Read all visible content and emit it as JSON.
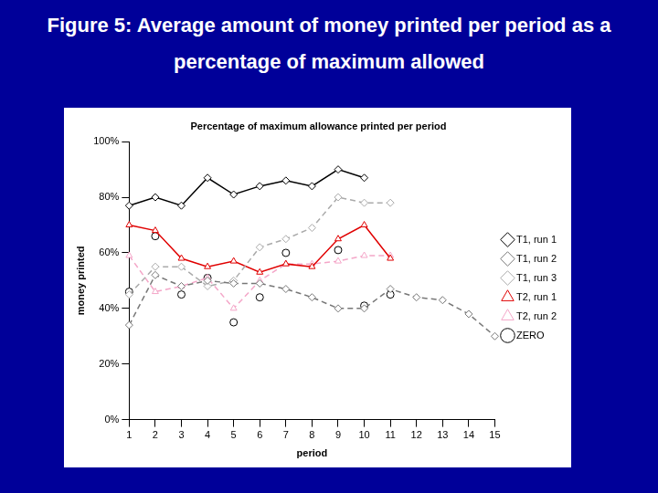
{
  "heading": "Figure 5: Average amount of money printed per period as a percentage of maximum allowed",
  "chart_data": {
    "type": "line",
    "title": "Percentage of maximum allowance printed per period",
    "x_label": "period",
    "y_label": "money printed",
    "categories": [
      1,
      2,
      3,
      4,
      5,
      6,
      7,
      8,
      9,
      10,
      11,
      12,
      13,
      14,
      15
    ],
    "ylim": [
      0,
      100
    ],
    "yticks": [
      {
        "value": 0,
        "label": "0%"
      },
      {
        "value": 20,
        "label": "20%"
      },
      {
        "value": 40,
        "label": "40%"
      },
      {
        "value": 60,
        "label": "60%"
      },
      {
        "value": 80,
        "label": "80%"
      },
      {
        "value": 100,
        "label": "100%"
      }
    ],
    "grid": false,
    "legend": "right",
    "series": [
      {
        "name": "T1, run 1",
        "color": "#000000",
        "marker": "diamond",
        "line_style": "solid",
        "values": [
          77,
          80,
          77,
          87,
          81,
          84,
          86,
          84,
          90,
          87,
          null,
          null,
          null,
          null,
          null
        ]
      },
      {
        "name": "T1, run 2",
        "color": "#777777",
        "marker": "diamond",
        "line_style": "dashed",
        "values": [
          34,
          52,
          48,
          50,
          49,
          49,
          47,
          44,
          40,
          40,
          47,
          44,
          43,
          38,
          30
        ]
      },
      {
        "name": "T1, run 3",
        "color": "#aaaaaa",
        "marker": "diamond",
        "line_style": "dashed",
        "values": [
          45,
          55,
          55,
          48,
          50,
          62,
          65,
          69,
          80,
          78,
          78,
          null,
          null,
          null,
          null
        ]
      },
      {
        "name": "T2, run 1",
        "color": "#e00000",
        "marker": "triangle",
        "line_style": "solid",
        "values": [
          70,
          68,
          58,
          55,
          57,
          53,
          56,
          55,
          65,
          70,
          58,
          null,
          null,
          null,
          null
        ]
      },
      {
        "name": "T2, run 2",
        "color": "#f4a6c8",
        "marker": "triangle",
        "line_style": "dashed",
        "values": [
          59,
          46,
          48,
          51,
          40,
          50,
          56,
          56,
          57,
          59,
          59,
          null,
          null,
          null,
          null
        ]
      },
      {
        "name": "ZERO",
        "color": "#000000",
        "marker": "circle",
        "line_style": "none",
        "values": [
          46,
          66,
          45,
          51,
          35,
          44,
          60,
          null,
          61,
          41,
          45,
          null,
          null,
          null,
          null
        ]
      }
    ]
  }
}
